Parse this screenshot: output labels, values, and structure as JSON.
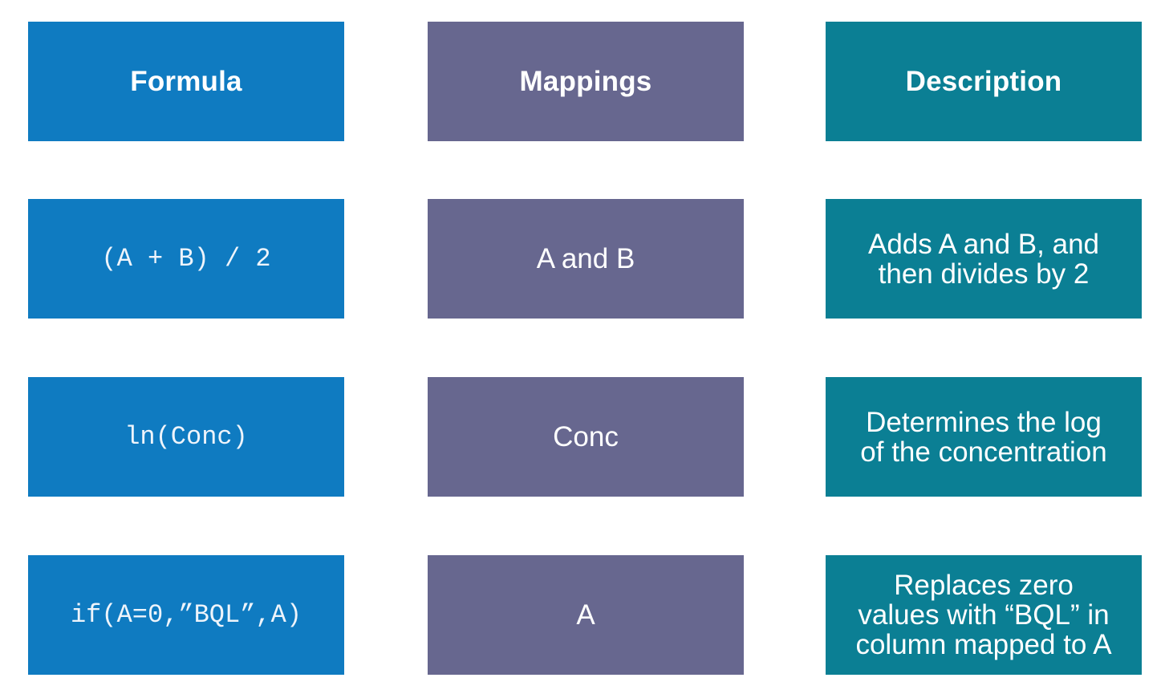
{
  "headers": {
    "formula": "Formula",
    "mappings": "Mappings",
    "description": "Description"
  },
  "rows": [
    {
      "formula": "(A + B) / 2",
      "mappings": "A and B",
      "description": [
        "Adds A and B, and",
        "then divides by 2"
      ]
    },
    {
      "formula": "ln(Conc)",
      "mappings": "Conc",
      "description": [
        "Determines the log",
        "of the concentration"
      ]
    },
    {
      "formula": "if(A=0,”BQL”,A)",
      "mappings": "A",
      "description": [
        "Replaces zero",
        "values with “BQL” in",
        "column mapped to A"
      ]
    }
  ],
  "colors": {
    "formula": "#0f7bc1",
    "mappings": "#67678f",
    "description": "#0b7f94"
  }
}
